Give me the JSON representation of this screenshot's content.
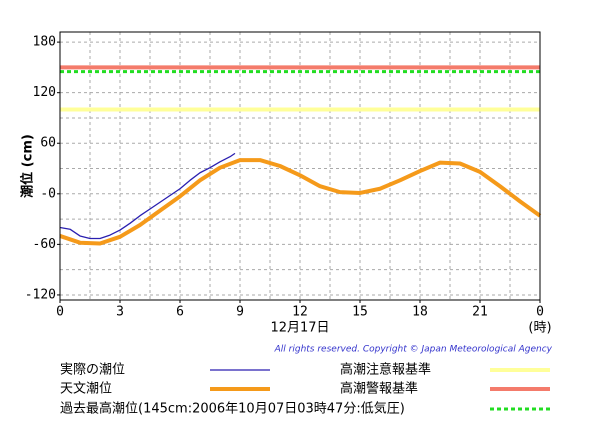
{
  "chart_data": {
    "type": "line",
    "y_label": "潮位 (cm)",
    "x_label": "12月17日",
    "x_unit": "(時)",
    "copyright": "All rights reserved. Copyright © Japan Meteorological Agency",
    "xlim": [
      0,
      24
    ],
    "xticks": [
      0,
      3,
      6,
      9,
      12,
      15,
      18,
      21,
      {
        "value": 24,
        "label": "0"
      }
    ],
    "ylim": [
      -126,
      192
    ],
    "yticks": [
      {
        "value": -120,
        "label": "-120"
      },
      {
        "value": -60,
        "label": "-60"
      },
      {
        "value": 0,
        "label": "-0"
      },
      60,
      120,
      180
    ],
    "grid": true,
    "series": [
      {
        "name": "実際の潮位",
        "color": "#2a1fb0",
        "x": [
          0,
          0.5,
          1,
          1.5,
          2,
          2.5,
          3,
          3.5,
          4,
          4.5,
          5,
          5.5,
          6,
          6.5,
          7,
          7.5,
          8,
          8.5,
          8.75
        ],
        "values": [
          -40,
          -42,
          -50,
          -53,
          -53,
          -49,
          -43,
          -35,
          -26,
          -18,
          -10,
          -2,
          6,
          16,
          25,
          31,
          38,
          44,
          48
        ]
      },
      {
        "name": "天文潮位",
        "color": "#f59a1a",
        "x": [
          0,
          1,
          2,
          3,
          4,
          5,
          6,
          7,
          8,
          9,
          10,
          11,
          12,
          13,
          14,
          15,
          16,
          17,
          18,
          19,
          20,
          21,
          22,
          23,
          24
        ],
        "values": [
          -50,
          -58,
          -59,
          -51,
          -37,
          -20,
          -3,
          16,
          31,
          40,
          40,
          33,
          22,
          9,
          2,
          1,
          6,
          16,
          27,
          37,
          36,
          26,
          9,
          -9,
          -26
        ]
      }
    ],
    "reference_lines": [
      {
        "name": "高潮注意報基準",
        "value": 100,
        "color": "#ffff99",
        "style": "solid"
      },
      {
        "name": "高潮警報基準",
        "value": 150,
        "color": "#f47b6b",
        "style": "solid"
      },
      {
        "name": "過去最高潮位(145cm:2006年10月07日03時47分:低気圧)",
        "value": 145,
        "color": "#22dd22",
        "style": "dashed"
      }
    ]
  }
}
